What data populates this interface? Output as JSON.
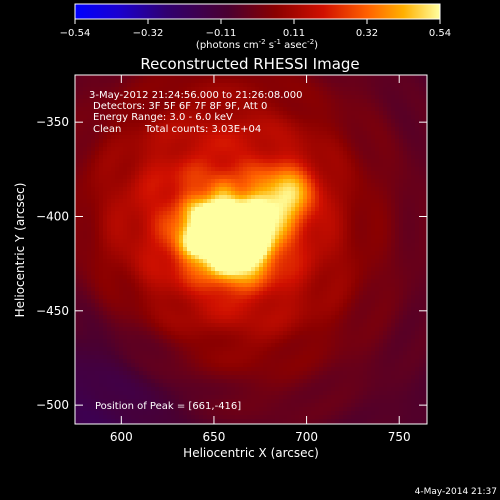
{
  "chart_data": {
    "type": "heatmap",
    "title": "Reconstructed RHESSI Image",
    "xlabel": "Heliocentric X (arcsec)",
    "ylabel": "Heliocentric Y (arcsec)",
    "xlim": [
      575,
      765
    ],
    "ylim": [
      -510,
      -325
    ],
    "xticks": [
      600,
      650,
      700,
      750
    ],
    "yticks": [
      -350,
      -400,
      -450,
      -500
    ],
    "grid": false,
    "colorbar": {
      "min": -0.54,
      "max": 0.54,
      "ticks": [
        "-0.54",
        "-0.32",
        "-0.11",
        "0.11",
        "0.32",
        "0.54"
      ],
      "unit_prefix": "(photons cm",
      "unit_exp1": "-2",
      "unit_mid": " s",
      "unit_exp2": "-1",
      "unit_mid2": " asec",
      "unit_exp3": "-2",
      "unit_suffix": ")"
    },
    "annotations": {
      "time": "3-May-2012 21:24:56.000 to 21:26:08.000",
      "detectors": "Detectors: 3F 5F 6F 7F 8F 9F, Att 0",
      "energy": "Energy Range: 3.0 - 6.0 keV",
      "clean": "Clean",
      "counts": "Total counts: 3.03E+04",
      "peak": "Position of Peak = [661,-416]"
    },
    "peak": {
      "x": 661,
      "y": -416
    },
    "sources": [
      {
        "x": 661,
        "y": -416,
        "amp": 0.54,
        "sigma": 12
      },
      {
        "x": 650,
        "y": -402,
        "amp": 0.3,
        "sigma": 10
      },
      {
        "x": 690,
        "y": -388,
        "amp": 0.3,
        "sigma": 10
      },
      {
        "x": 641,
        "y": -412,
        "amp": 0.22,
        "sigma": 9
      },
      {
        "x": 672,
        "y": -404,
        "amp": 0.25,
        "sigma": 12
      }
    ],
    "halo": {
      "x": 655,
      "y": -405,
      "amp": 0.3,
      "sigma": 55
    }
  },
  "footer": {
    "date": "4-May-2014 21:37"
  }
}
